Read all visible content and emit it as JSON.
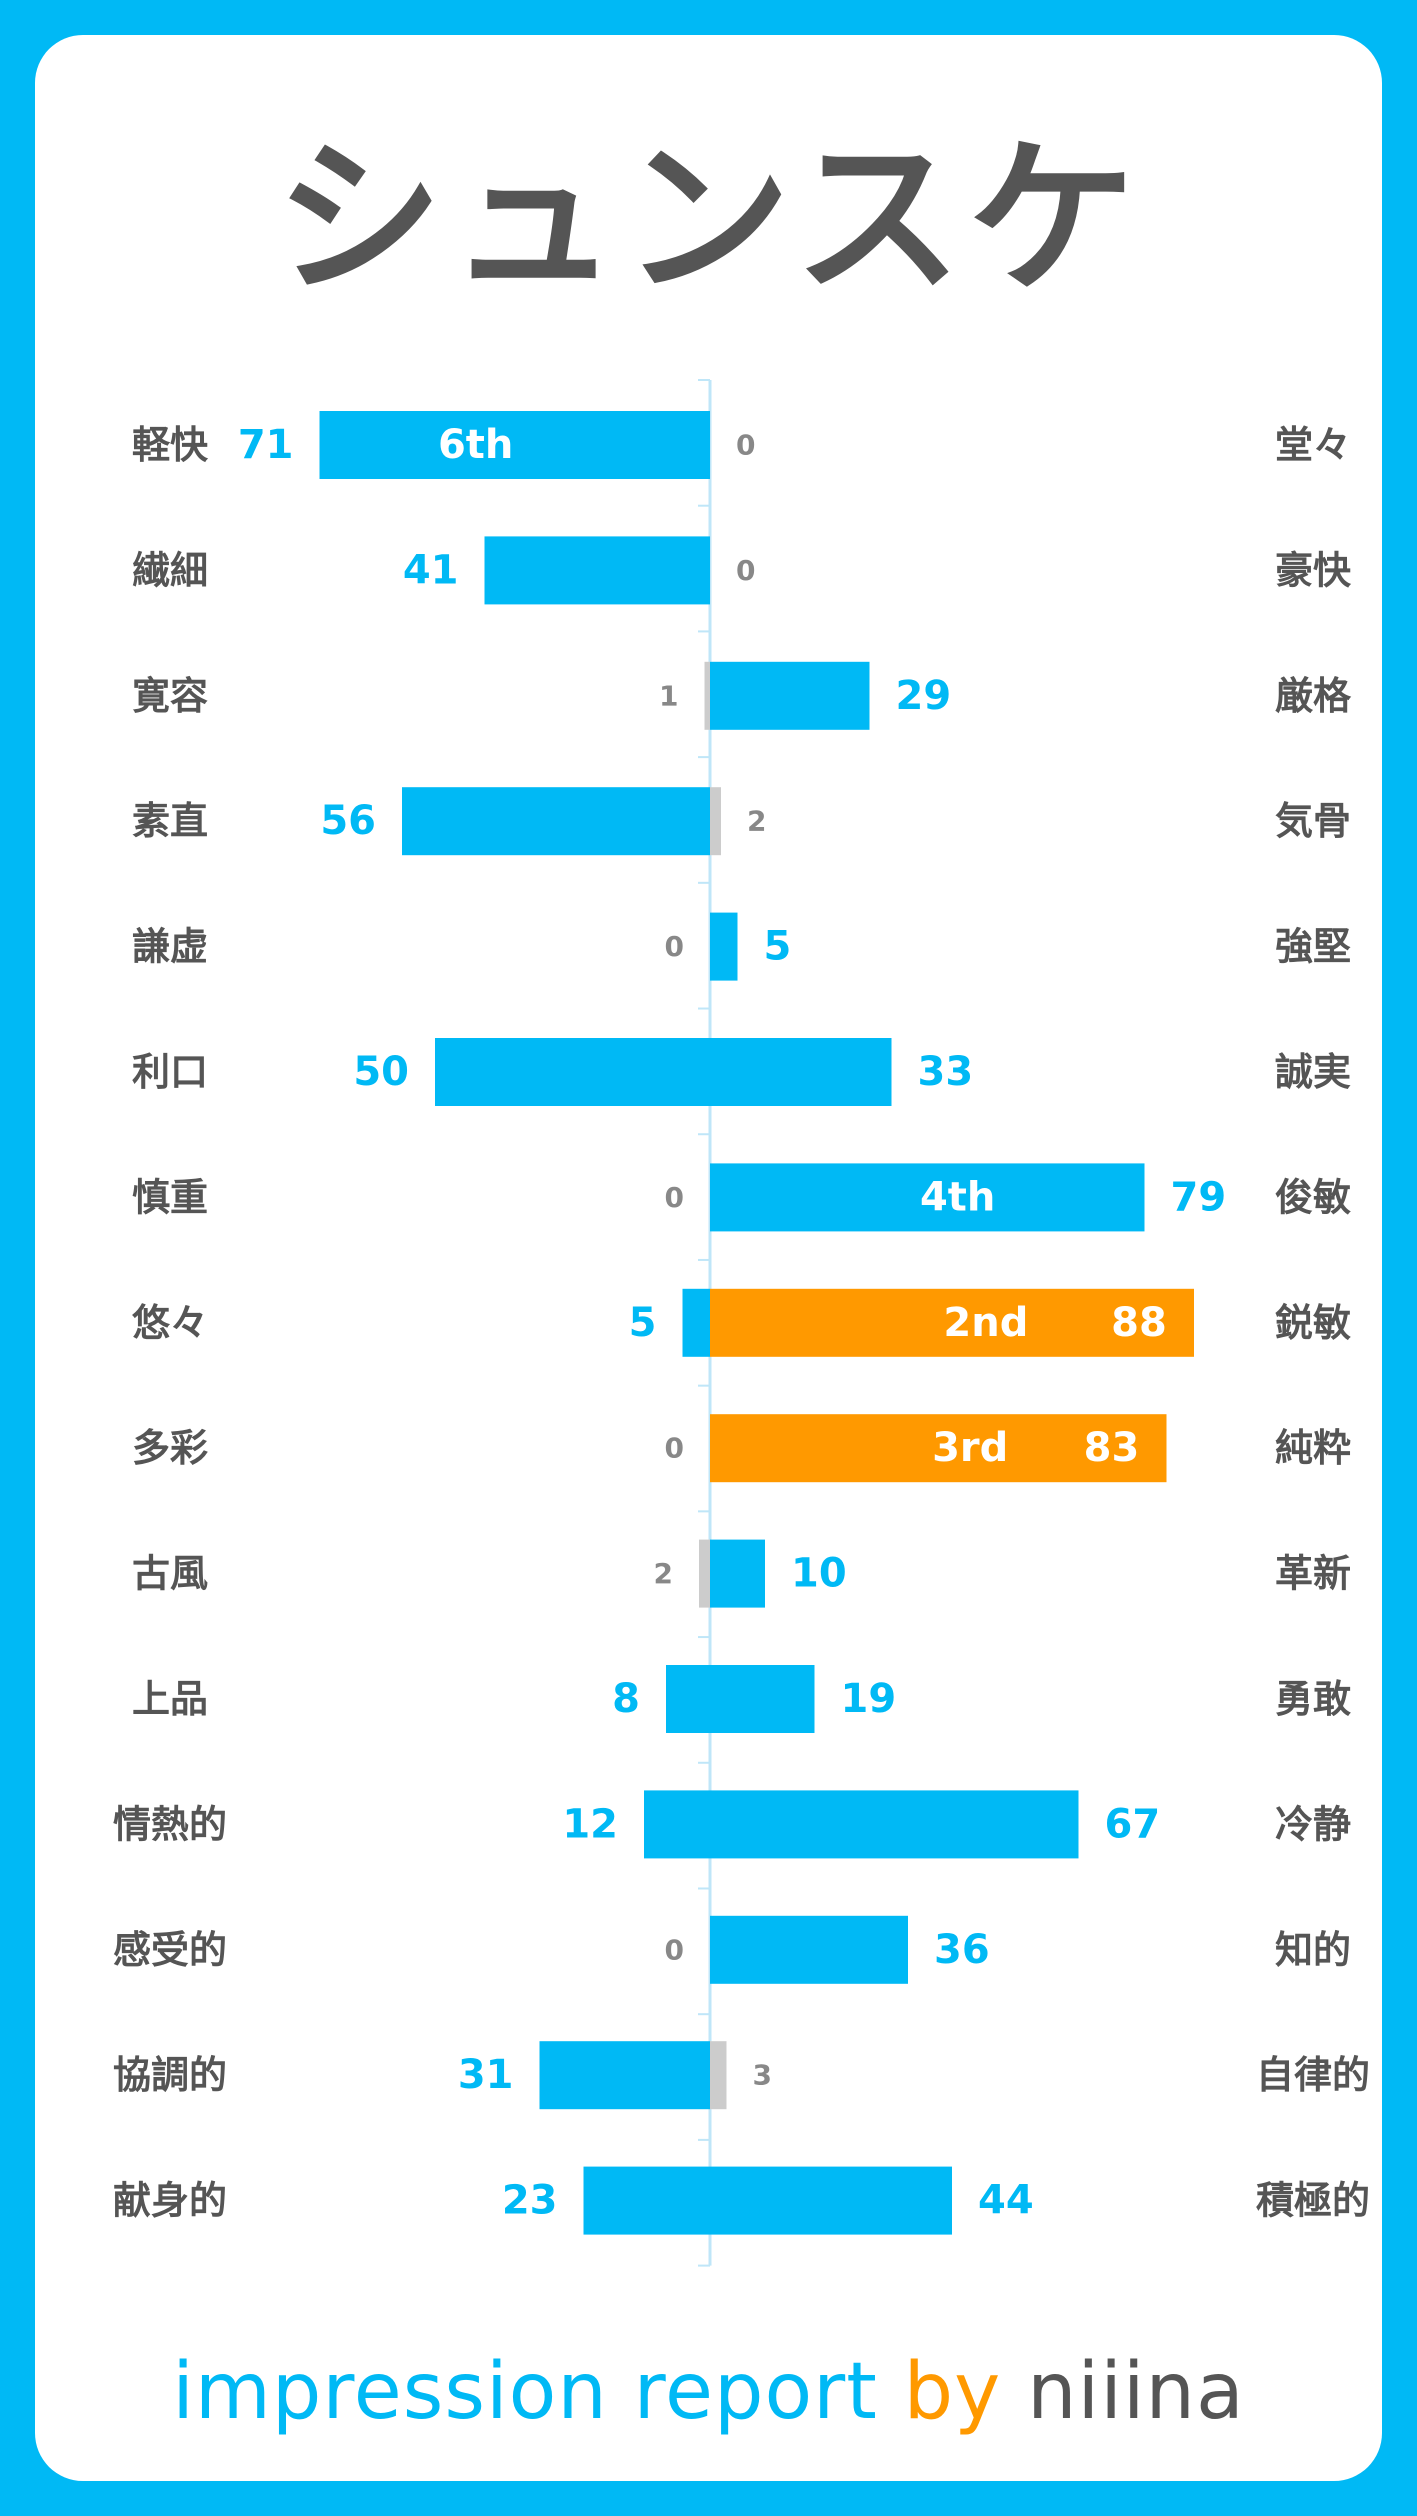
{
  "title": "シュンスケ",
  "footer": {
    "part1": "impression report",
    "part2": "by",
    "part3": "niiina"
  },
  "colors": {
    "blue": "#00b9f5",
    "orange": "#ff9900",
    "gray": "#cccccc",
    "text": "#555555"
  },
  "chart_data": {
    "type": "bar",
    "orientation": "diverging-horizontal",
    "categories": [
      {
        "left": "軽快",
        "right": "堂々"
      },
      {
        "left": "繊細",
        "right": "豪快"
      },
      {
        "left": "寛容",
        "right": "厳格"
      },
      {
        "left": "素直",
        "right": "気骨"
      },
      {
        "left": "謙虚",
        "right": "強堅"
      },
      {
        "left": "利口",
        "right": "誠実"
      },
      {
        "left": "慎重",
        "right": "俊敏"
      },
      {
        "left": "悠々",
        "right": "鋭敏"
      },
      {
        "left": "多彩",
        "right": "純粋"
      },
      {
        "left": "古風",
        "right": "革新"
      },
      {
        "left": "上品",
        "right": "勇敢"
      },
      {
        "left": "情熱的",
        "right": "冷静"
      },
      {
        "left": "感受的",
        "right": "知的"
      },
      {
        "left": "協調的",
        "right": "自律的"
      },
      {
        "left": "献身的",
        "right": "積極的"
      }
    ],
    "series": [
      {
        "values": [
          71,
          41,
          1,
          56,
          0,
          50,
          0,
          5,
          0,
          2,
          8,
          12,
          0,
          31,
          23
        ]
      },
      {
        "values": [
          0,
          0,
          29,
          2,
          5,
          33,
          79,
          88,
          83,
          10,
          19,
          67,
          36,
          3,
          44
        ]
      }
    ],
    "ranks": [
      {
        "row": 0,
        "side": "left",
        "label": "6th"
      },
      {
        "row": 6,
        "side": "right",
        "label": "4th"
      },
      {
        "row": 7,
        "side": "right",
        "label": "2nd",
        "highlight": true
      },
      {
        "row": 8,
        "side": "right",
        "label": "3rd",
        "highlight": true
      }
    ]
  }
}
